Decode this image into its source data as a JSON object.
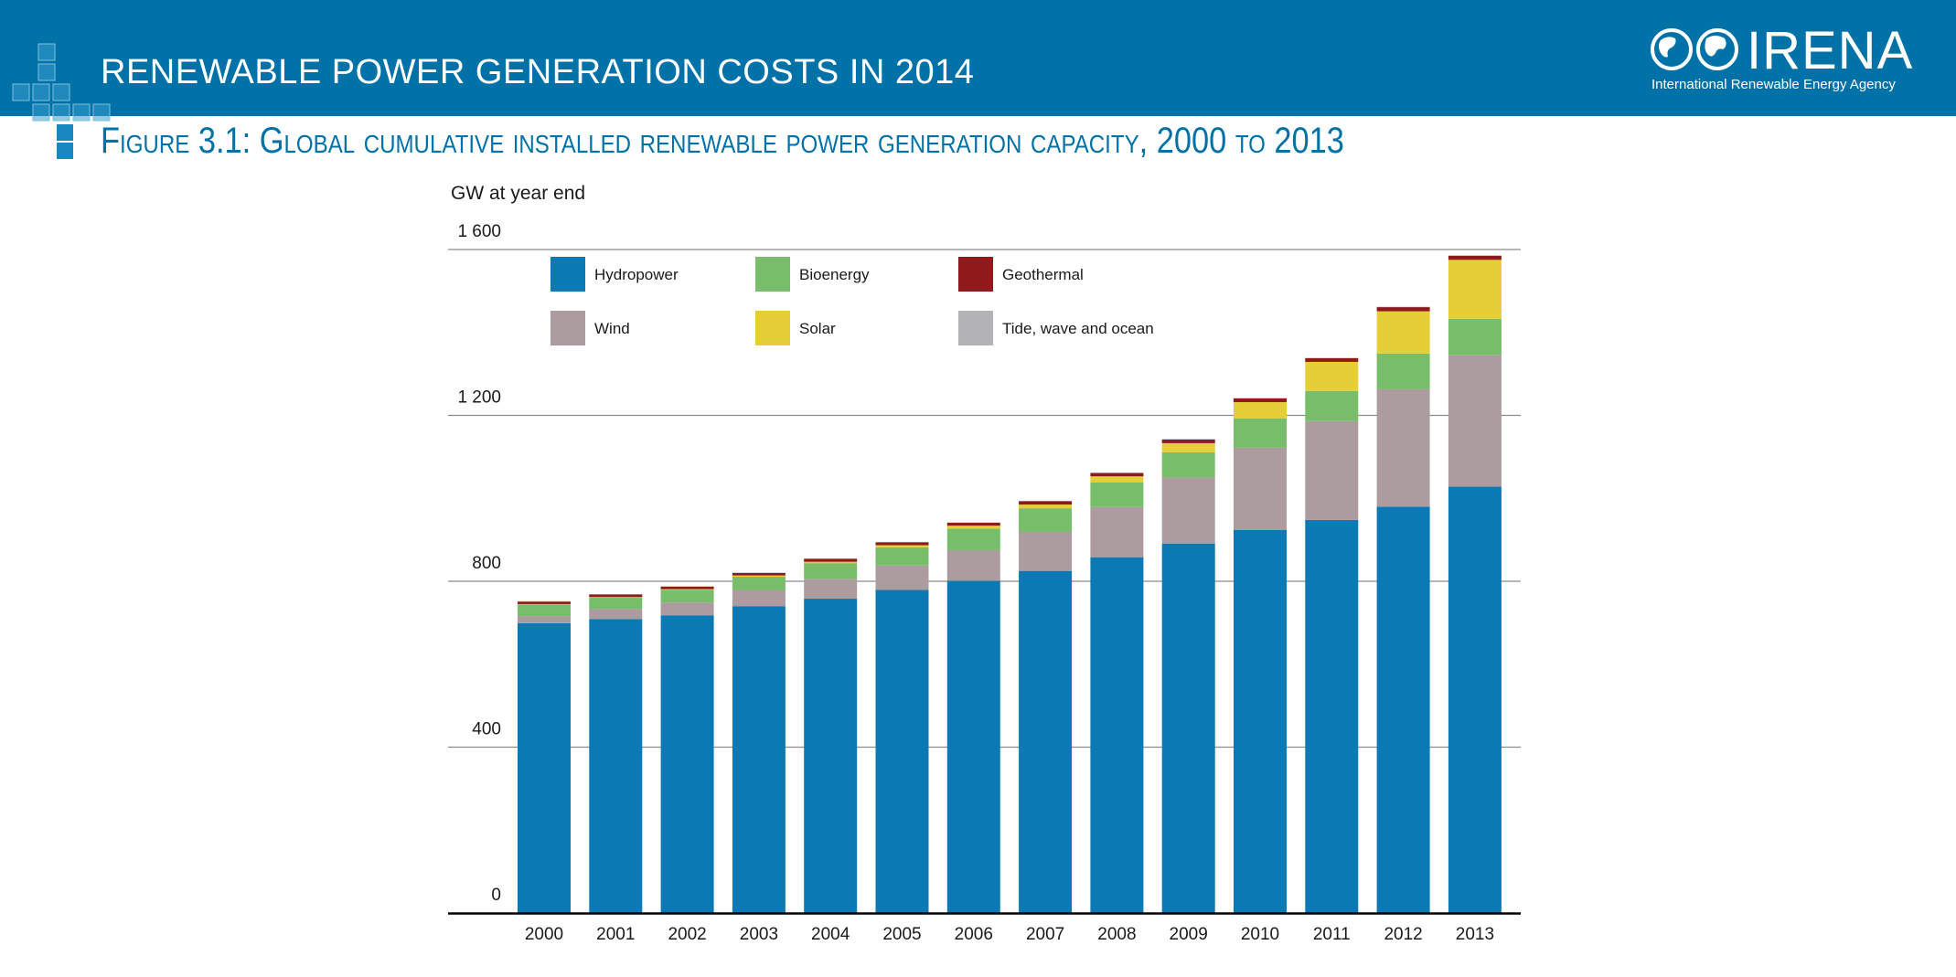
{
  "header": {
    "title": "RENEWABLE POWER GENERATION COSTS IN 2014"
  },
  "logo": {
    "name": "IRENA",
    "tagline": "International Renewable Energy Agency"
  },
  "figure": {
    "title": "Figure 3.1: Global cumulative installed renewable power generation capacity, 2000 to 2013"
  },
  "colors": {
    "banner": "#0072a8",
    "title": "#0072a8",
    "hydropower": "#0a79b4",
    "wind": "#ac9c9f",
    "bioenergy": "#78bd6a",
    "solar": "#e6cf36",
    "geothermal": "#8e1a1c",
    "tide": "#b3b3b6"
  },
  "chart_data": {
    "type": "bar",
    "stacked": true,
    "ylabel": "GW at year end",
    "ylim": [
      0,
      1600
    ],
    "yticks": [
      {
        "value": 0,
        "label": "0"
      },
      {
        "value": 400,
        "label": "400"
      },
      {
        "value": 800,
        "label": "800"
      },
      {
        "value": 1200,
        "label": "1 200"
      },
      {
        "value": 1600,
        "label": "1 600"
      }
    ],
    "grid": true,
    "legend_position": "top-left",
    "categories": [
      "2000",
      "2001",
      "2002",
      "2003",
      "2004",
      "2005",
      "2006",
      "2007",
      "2008",
      "2009",
      "2010",
      "2011",
      "2012",
      "2013"
    ],
    "series": [
      {
        "name": "Hydropower",
        "key": "hydropower",
        "values": [
          699,
          709,
          718,
          740,
          758,
          779,
          801,
          825,
          858,
          891,
          924,
          948,
          980,
          1028
        ]
      },
      {
        "name": "Wind",
        "key": "wind",
        "values": [
          17,
          24,
          31,
          39,
          48,
          59,
          74,
          94,
          121,
          159,
          198,
          238,
          283,
          318
        ]
      },
      {
        "name": "Bioenergy",
        "key": "bioenergy",
        "values": [
          28,
          28,
          30,
          32,
          37,
          44,
          52,
          57,
          59,
          61,
          71,
          73,
          86,
          87
        ]
      },
      {
        "name": "Solar",
        "key": "solar",
        "values": [
          1,
          1,
          2,
          3,
          4,
          5,
          7,
          9,
          15,
          22,
          39,
          70,
          102,
          142
        ]
      },
      {
        "name": "Geothermal",
        "key": "geothermal",
        "values": [
          6,
          6,
          6,
          6,
          7,
          7,
          7,
          8,
          8,
          9,
          9,
          9,
          10,
          10
        ]
      },
      {
        "name": "Tide, wave and ocean",
        "key": "tide",
        "values": [
          1,
          1,
          1,
          1,
          1,
          1,
          1,
          1,
          1,
          1,
          1,
          1,
          1,
          1
        ]
      }
    ]
  }
}
